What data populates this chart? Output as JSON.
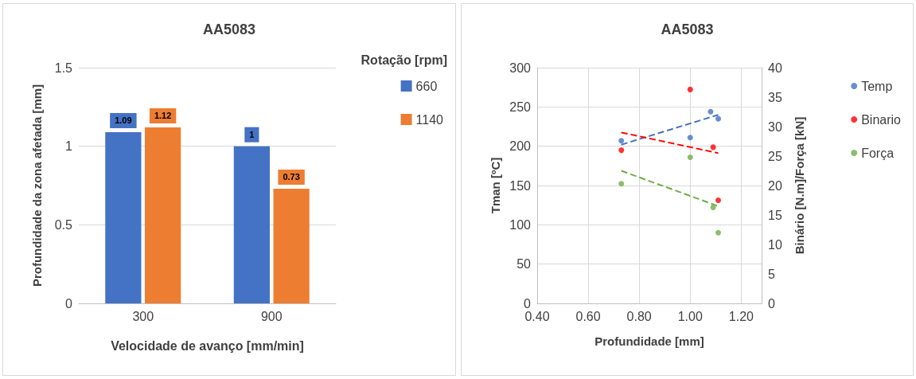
{
  "chart_data": [
    {
      "type": "bar",
      "title": "AA5083",
      "xlabel": "Velocidade de avanço [mm/min]",
      "ylabel": "Profundidade da zona afetada [mm]",
      "legend_title": "Rotação [rpm]",
      "categories": [
        "300",
        "900"
      ],
      "series": [
        {
          "name": "660",
          "color": "#4472c4",
          "values": [
            1.09,
            1
          ]
        },
        {
          "name": "1140",
          "color": "#ed7d31",
          "values": [
            1.12,
            0.73
          ]
        }
      ],
      "ylim": [
        0,
        1.5
      ],
      "yticks": [
        0,
        0.5,
        1,
        1.5
      ],
      "grid": "y",
      "legend": "right",
      "data_labels": true
    },
    {
      "type": "scatter",
      "title": "AA5083",
      "xlabel": "Profundidade [mm]",
      "ylabel": "Tman [ºC]",
      "y2label": "Binário [N.m]/Força [kN]",
      "series": [
        {
          "name": "Temp",
          "color": "#4472c4",
          "x": [
            0.73,
            1.0,
            1.08,
            1.11
          ],
          "values": [
            207,
            211,
            244,
            235
          ]
        },
        {
          "name": "Binario",
          "color": "#ff0000",
          "axis": "y2",
          "x": [
            0.73,
            1.0,
            1.09,
            1.11
          ],
          "values": [
            26,
            36.3,
            26.5,
            17.5
          ]
        },
        {
          "name": "Força",
          "color": "#70ad47",
          "axis": "y2",
          "x": [
            0.73,
            1.0,
            1.09,
            1.11
          ],
          "values": [
            20.3,
            24.8,
            16.3,
            12
          ]
        },
        {
          "type": "line",
          "color": "#4472c4",
          "x": [
            0.73,
            1.11
          ],
          "values": [
            202,
            240
          ],
          "line_style": "dashed",
          "marker": "none"
        },
        {
          "type": "line",
          "color": "#ff0000",
          "axis": "y2",
          "x": [
            0.73,
            1.11
          ],
          "values": [
            29,
            25.5
          ],
          "line_style": "dashed",
          "marker": "none"
        },
        {
          "type": "line",
          "color": "#70ad47",
          "axis": "y2",
          "x": [
            0.73,
            1.11
          ],
          "values": [
            22.5,
            16.5
          ],
          "line_style": "dashed",
          "marker": "none"
        }
      ],
      "xlim": [
        0.4,
        1.28
      ],
      "xticks": [
        {
          "value": 0.4,
          "label": "0.40"
        },
        {
          "value": 0.6,
          "label": "0.60"
        },
        {
          "value": 0.8,
          "label": "0.80"
        },
        {
          "value": 1.0,
          "label": "1.00"
        },
        {
          "value": 1.2,
          "label": "1.20"
        }
      ],
      "ylim": [
        0,
        300
      ],
      "yticks": [
        0,
        50,
        100,
        150,
        200,
        250,
        300
      ],
      "y2lim": [
        0,
        40
      ],
      "y2ticks": [
        0,
        5,
        10,
        15,
        20,
        25,
        30,
        35,
        40
      ],
      "grid": true,
      "legend": "right",
      "marker": "circle"
    }
  ]
}
